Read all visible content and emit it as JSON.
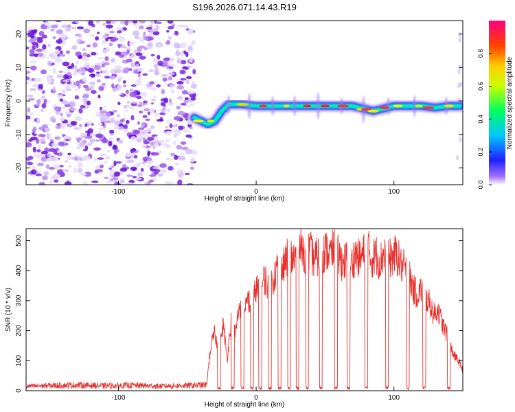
{
  "title": "S196.2026.071.14.43.R19",
  "colors": {
    "snr_line": "#e8312d",
    "noise": "#7a2be0",
    "background": "#ffffff"
  },
  "chart_data": [
    {
      "type": "heatmap",
      "title": "S196.2026.071.14.43.R19",
      "xlabel": "Height of straight line (km)",
      "ylabel": "Frequency (Hz)",
      "xlim": [
        -167,
        150
      ],
      "ylim": [
        -25,
        24
      ],
      "x_ticks": [
        -100,
        0,
        100
      ],
      "y_ticks": [
        -20,
        -10,
        0,
        10,
        20
      ],
      "colorbar": {
        "label": "Normalized spectral amplitude",
        "range": [
          0.0,
          1.0
        ],
        "ticks": [
          0.0,
          0.2,
          0.4,
          0.6,
          0.8
        ],
        "tick_labels": [
          "0.0",
          "0.2",
          "0.4",
          "0.6",
          "0.8"
        ]
      },
      "signal_trace": {
        "x": [
          -45,
          -40,
          -35,
          -30,
          -25,
          -20,
          -10,
          0,
          10,
          20,
          30,
          40,
          50,
          60,
          70,
          80,
          85,
          90,
          95,
          100,
          110,
          120,
          130,
          140,
          148
        ],
        "freq": [
          -5,
          -6,
          -7,
          -6,
          -3,
          -1,
          -1,
          -1.5,
          -1.5,
          -1.5,
          -1.5,
          -1.5,
          -1.5,
          -1.5,
          -1.5,
          -2.5,
          -3,
          -2.5,
          -2,
          -1.5,
          -1.5,
          -1.5,
          -2,
          -1.5,
          -1.5
        ]
      },
      "noise_region": [
        -167,
        -45
      ]
    },
    {
      "type": "line",
      "xlabel": "Height of straight line (km)",
      "ylabel": "SNR (10 * v/v)",
      "xlim": [
        -167,
        150
      ],
      "ylim": [
        0,
        540
      ],
      "x_ticks": [
        -100,
        0,
        100
      ],
      "y_ticks": [
        0,
        100,
        200,
        300,
        400,
        500
      ],
      "series": [
        {
          "name": "SNR",
          "x": [
            -167,
            -150,
            -130,
            -110,
            -90,
            -70,
            -50,
            -36,
            -33,
            -30,
            -27,
            -24,
            -21,
            -18,
            -15,
            -12,
            -9,
            -6,
            -3,
            0,
            3,
            6,
            9,
            12,
            15,
            18,
            21,
            24,
            27,
            30,
            33,
            36,
            39,
            42,
            45,
            48,
            51,
            54,
            57,
            60,
            63,
            66,
            69,
            72,
            75,
            78,
            81,
            84,
            87,
            90,
            93,
            96,
            99,
            102,
            105,
            108,
            111,
            114,
            117,
            120,
            123,
            126,
            129,
            132,
            135,
            138,
            141,
            144,
            147,
            150
          ],
          "values": [
            15,
            18,
            20,
            17,
            19,
            16,
            18,
            20,
            150,
            200,
            120,
            230,
            110,
            250,
            200,
            300,
            240,
            320,
            280,
            360,
            330,
            390,
            350,
            380,
            420,
            400,
            440,
            470,
            450,
            480,
            490,
            470,
            480,
            450,
            460,
            470,
            480,
            470,
            490,
            460,
            440,
            450,
            430,
            470,
            450,
            470,
            490,
            450,
            470,
            440,
            480,
            450,
            460,
            470,
            430,
            420,
            400,
            350,
            330,
            350,
            320,
            300,
            260,
            280,
            230,
            200,
            150,
            120,
            100,
            70
          ]
        }
      ]
    }
  ]
}
